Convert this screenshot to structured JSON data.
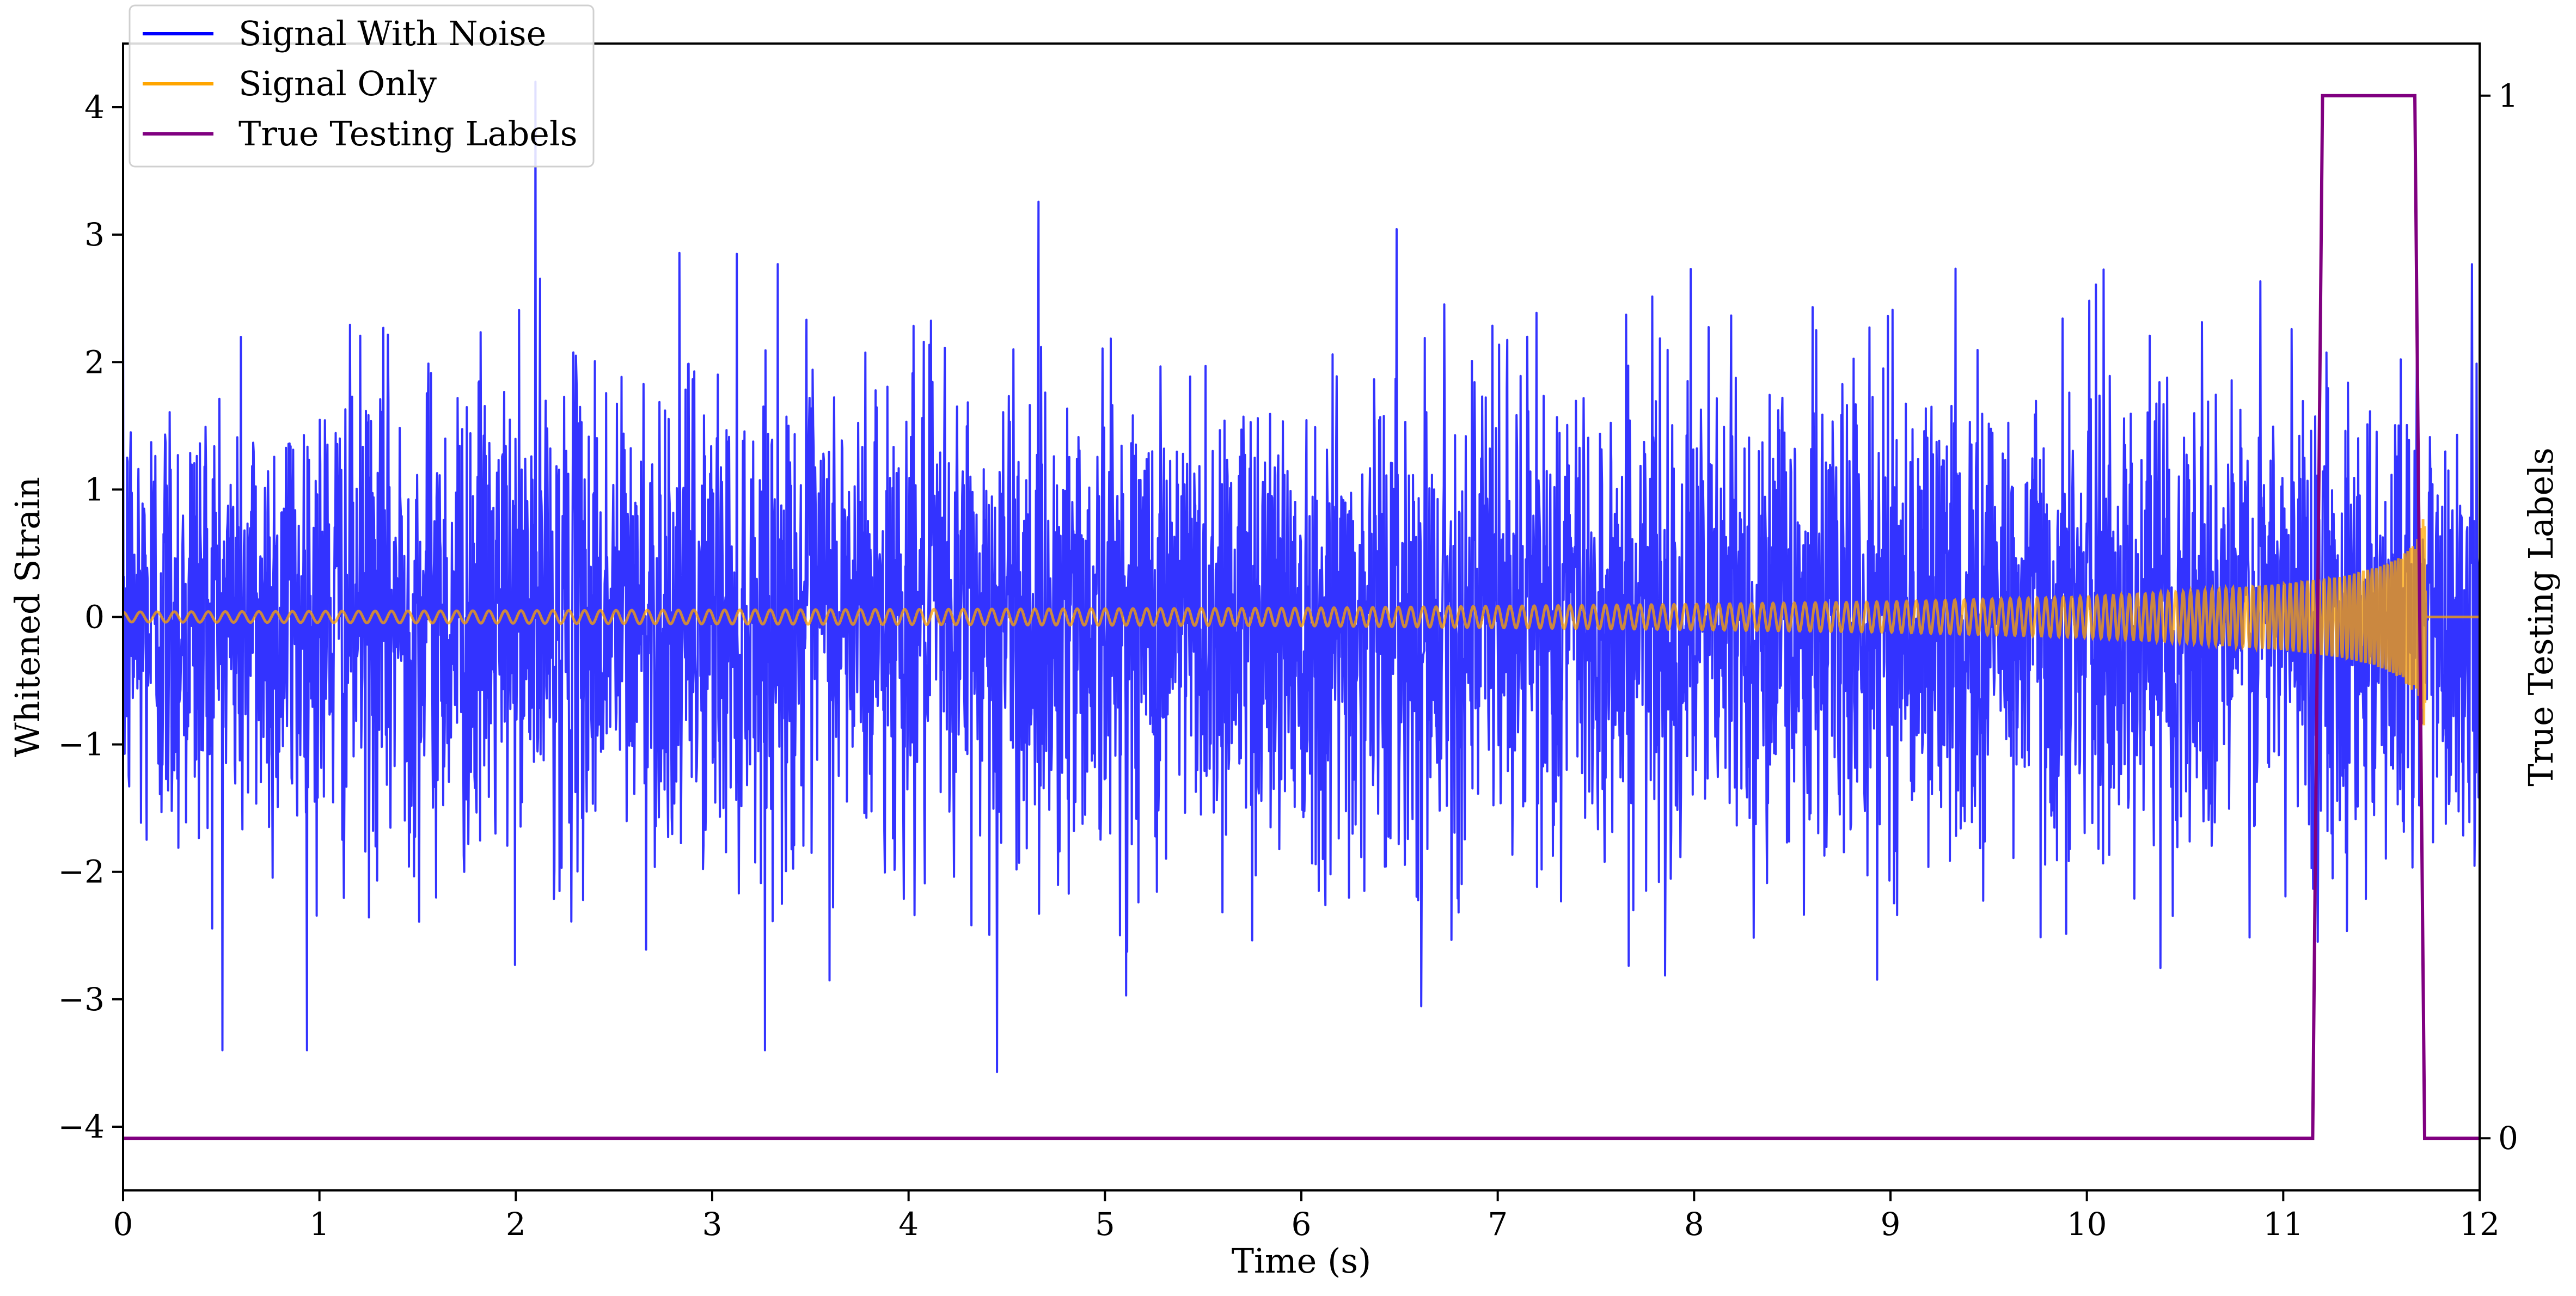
{
  "chart_data": {
    "type": "line",
    "title": "",
    "xlabel": "Time (s)",
    "ylabel": "Whitened Strain",
    "y2label": "True Testing Labels",
    "xlim": [
      0,
      12
    ],
    "ylim": [
      -4.5,
      4.5
    ],
    "y2lim": [
      -0.05,
      1.05
    ],
    "xticks": [
      "0",
      "1",
      "2",
      "3",
      "4",
      "5",
      "6",
      "7",
      "8",
      "9",
      "10",
      "11",
      "12"
    ],
    "yticks": [
      "4",
      "3",
      "2",
      "1",
      "0",
      "−1",
      "−2",
      "−3",
      "−4"
    ],
    "y2ticks": [
      "1",
      "0"
    ],
    "legend_position": "top-left",
    "series": [
      {
        "name": "Signal With Noise",
        "color": "#0000ff",
        "axis": "left",
        "description_values": {
          "typical_range": [
            -2.5,
            2.6
          ],
          "max": 4.2,
          "max_at": 2.1,
          "min": -3.57,
          "min_at": 4.45
        }
      },
      {
        "name": "Signal Only",
        "color": "#ffa500",
        "axis": "left",
        "envelope": {
          "x": [
            0,
            2,
            4,
            6,
            8,
            9,
            10,
            10.5,
            11,
            11.3,
            11.5,
            11.6,
            11.7,
            11.72,
            11.73,
            12
          ],
          "amp": [
            0.04,
            0.05,
            0.06,
            0.07,
            0.1,
            0.12,
            0.16,
            0.2,
            0.26,
            0.32,
            0.4,
            0.48,
            0.65,
            0.9,
            0,
            0
          ]
        }
      },
      {
        "name": "True Testing Labels",
        "color": "#800080",
        "axis": "right",
        "x": [
          0,
          11.15,
          11.2,
          11.67,
          11.72,
          12
        ],
        "y": [
          0,
          0,
          1,
          1,
          0,
          0
        ]
      }
    ]
  }
}
